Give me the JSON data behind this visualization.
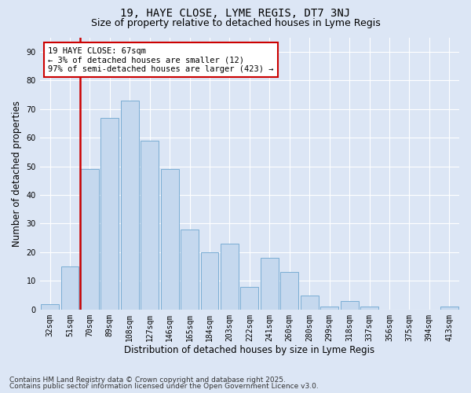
{
  "title_line1": "19, HAYE CLOSE, LYME REGIS, DT7 3NJ",
  "title_line2": "Size of property relative to detached houses in Lyme Regis",
  "xlabel": "Distribution of detached houses by size in Lyme Regis",
  "ylabel": "Number of detached properties",
  "categories": [
    "32sqm",
    "51sqm",
    "70sqm",
    "89sqm",
    "108sqm",
    "127sqm",
    "146sqm",
    "165sqm",
    "184sqm",
    "203sqm",
    "222sqm",
    "241sqm",
    "260sqm",
    "280sqm",
    "299sqm",
    "318sqm",
    "337sqm",
    "356sqm",
    "375sqm",
    "394sqm",
    "413sqm"
  ],
  "values": [
    2,
    15,
    49,
    67,
    73,
    59,
    49,
    28,
    20,
    23,
    8,
    18,
    13,
    5,
    1,
    3,
    1,
    0,
    0,
    0,
    1
  ],
  "bar_color": "#c5d8ee",
  "bar_edge_color": "#7aadd4",
  "vline_color": "#cc0000",
  "vline_x": 1.5,
  "annotation_text": "19 HAYE CLOSE: 67sqm\n← 3% of detached houses are smaller (12)\n97% of semi-detached houses are larger (423) →",
  "annotation_box_color": "#ffffff",
  "annotation_box_edge": "#cc0000",
  "ylim": [
    0,
    95
  ],
  "yticks": [
    0,
    10,
    20,
    30,
    40,
    50,
    60,
    70,
    80,
    90
  ],
  "bg_color": "#dce6f5",
  "plot_bg": "#dce6f5",
  "grid_color": "#ffffff",
  "footer_line1": "Contains HM Land Registry data © Crown copyright and database right 2025.",
  "footer_line2": "Contains public sector information licensed under the Open Government Licence v3.0.",
  "title_fontsize": 10,
  "subtitle_fontsize": 9,
  "axis_label_fontsize": 8.5,
  "tick_fontsize": 7,
  "annotation_fontsize": 7.5,
  "footer_fontsize": 6.5
}
